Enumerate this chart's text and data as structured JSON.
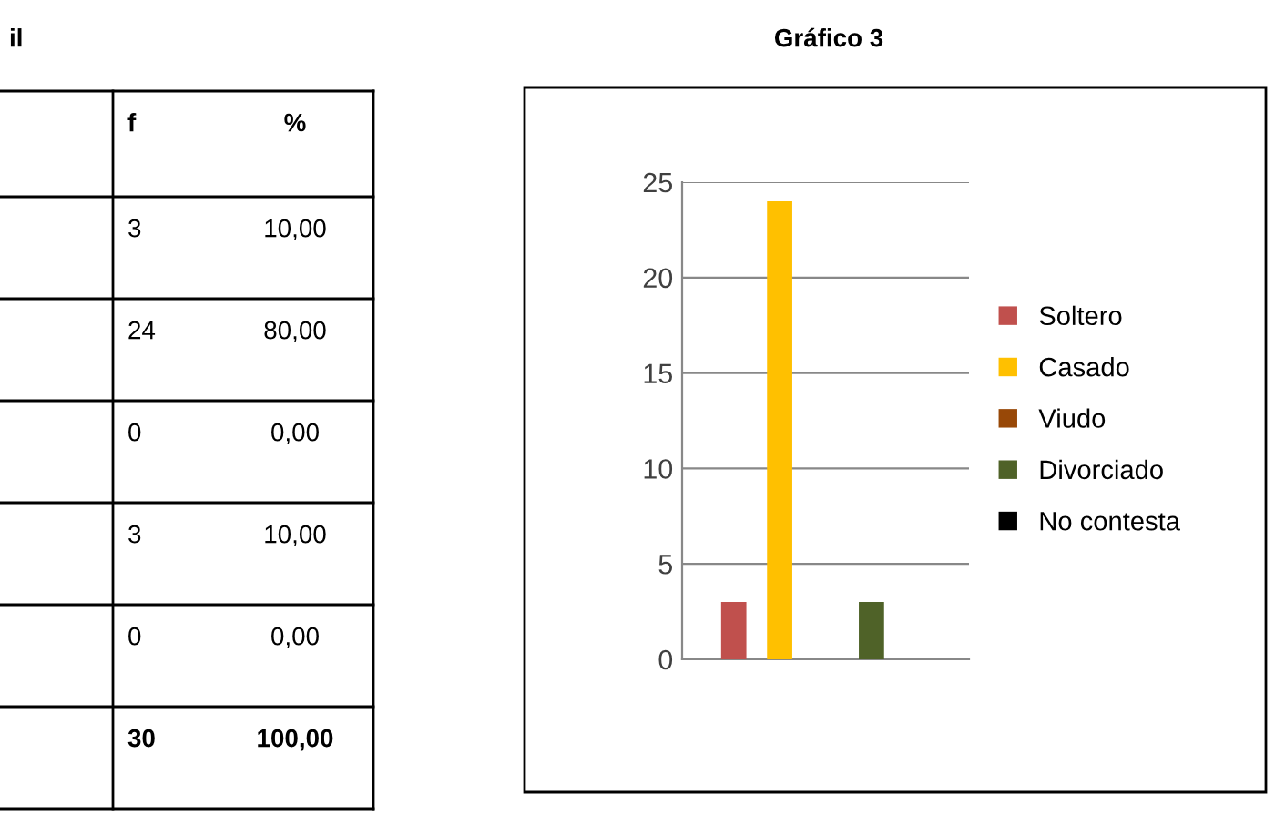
{
  "chart_data": {
    "type": "bar",
    "title": "Gráfico 3",
    "categories": [
      null
    ],
    "series": [
      {
        "name": "Soltero",
        "color": "#c0504d",
        "values": [
          3
        ]
      },
      {
        "name": "Casado",
        "color": "#ffc000",
        "values": [
          24
        ]
      },
      {
        "name": "Viudo",
        "color": "#984807",
        "values": [
          0
        ]
      },
      {
        "name": "Divorciado",
        "color": "#4f6228",
        "values": [
          3
        ]
      },
      {
        "name": "No contesta",
        "color": "#000000",
        "values": [
          0
        ]
      }
    ],
    "ylim": [
      0,
      25
    ],
    "yticks": [
      0,
      5,
      10,
      15,
      20,
      25
    ],
    "grid": "y",
    "legend": "right",
    "annotations": [
      "il",
      "f",
      "%",
      "3",
      "10,00",
      "24",
      "80,00",
      "0",
      "0,00",
      "3",
      "10,00",
      "0",
      "0,00",
      "30",
      "100,00"
    ]
  }
}
